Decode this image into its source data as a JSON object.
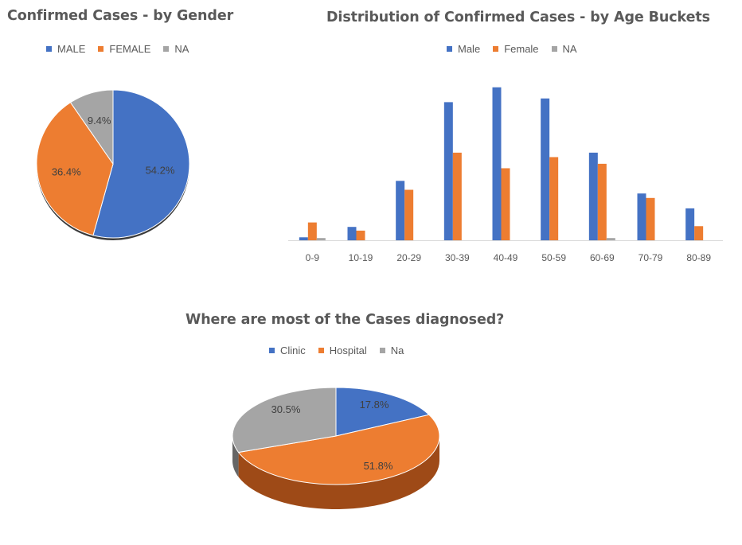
{
  "colors": {
    "blue": "#4472C4",
    "orange": "#ED7D31",
    "gray": "#A5A5A5",
    "darkorange": "#9E4A17",
    "axis": "#D9D9D9"
  },
  "chart_data": [
    {
      "id": "gender",
      "type": "pie",
      "title": "Confirmed Cases - by Gender",
      "legend_position": "top",
      "categories": [
        "MALE",
        "FEMALE",
        "NA"
      ],
      "values": [
        54.2,
        36.4,
        9.4
      ],
      "data_labels": [
        "54.2%",
        "36.4%",
        "9.4%"
      ]
    },
    {
      "id": "age",
      "type": "bar",
      "title": "Distribution of Confirmed Cases - by Age Buckets",
      "legend_position": "top",
      "grid": false,
      "categories": [
        "0-9",
        "10-19",
        "20-29",
        "30-39",
        "40-49",
        "50-59",
        "60-69",
        "70-79",
        "80-89"
      ],
      "series": [
        {
          "name": "Male",
          "values": [
            4,
            18,
            80,
            186,
            206,
            191,
            118,
            63,
            43
          ]
        },
        {
          "name": "Female",
          "values": [
            24,
            13,
            68,
            118,
            97,
            112,
            103,
            57,
            19
          ]
        },
        {
          "name": "NA",
          "values": [
            3,
            0,
            0,
            0,
            0,
            0,
            3,
            0,
            0
          ]
        }
      ],
      "ylim": [
        0,
        210
      ]
    },
    {
      "id": "location",
      "type": "pie",
      "title": "Where are most of the Cases diagnosed?",
      "legend_position": "top",
      "categories": [
        "Clinic",
        "Hospital",
        "Na"
      ],
      "values": [
        17.8,
        51.8,
        30.5
      ],
      "data_labels": [
        "17.8%",
        "51.8%",
        "30.5%"
      ]
    }
  ]
}
